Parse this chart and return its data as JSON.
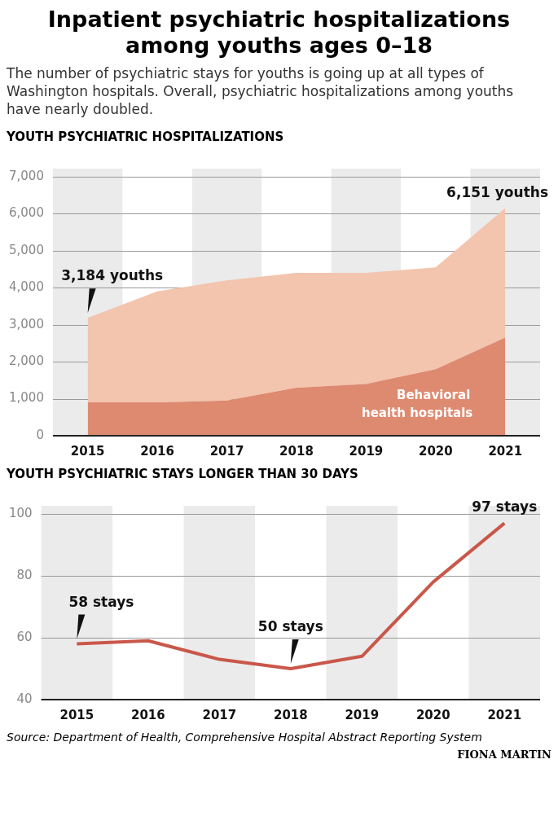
{
  "chart_data": [
    {
      "type": "area",
      "title": "Inpatient psychiatric hospitalizations among youths ages 0–18",
      "subtitle": "The number of psychiatric stays for youths is going up at all types of Washington hospitals. Overall, psychiatric hospitalizations among youths have nearly doubled.",
      "categories": [
        "2015",
        "2016",
        "2017",
        "2018",
        "2019",
        "2020",
        "2021"
      ],
      "stacked": true,
      "series": [
        {
          "name": "Behavioral health hospitals",
          "color": "#de8a70",
          "values": [
            900,
            900,
            950,
            1300,
            1400,
            1800,
            2650
          ]
        },
        {
          "color": "#f3c4ae",
          "values": [
            2284,
            3000,
            3250,
            3100,
            3000,
            2750,
            3501
          ]
        }
      ],
      "ylim": [
        0,
        7000
      ],
      "yticks": [
        {
          "value": 0,
          "label": "0"
        },
        {
          "value": 1000,
          "label": "1,000"
        },
        {
          "value": 2000,
          "label": "2,000"
        },
        {
          "value": 3000,
          "label": "3,000"
        },
        {
          "value": 4000,
          "label": "4,000"
        },
        {
          "value": 5000,
          "label": "5,000"
        },
        {
          "value": 6000,
          "label": "6,000"
        },
        {
          "value": 7000,
          "label": "7,000"
        }
      ],
      "grid": "y",
      "legend": false,
      "marker": "none",
      "bands": [
        {
          "axis": "x",
          "from": "2015",
          "to": "2015",
          "color": "#ebebeb"
        },
        {
          "axis": "x",
          "from": "2017",
          "to": "2017",
          "color": "#ebebeb"
        },
        {
          "axis": "x",
          "from": "2019",
          "to": "2019",
          "color": "#ebebeb"
        },
        {
          "axis": "x",
          "from": "2021",
          "to": "2021",
          "color": "#ebebeb"
        }
      ],
      "annotations": [
        "YOUTH PSYCHIATRIC HOSPITALIZATIONS",
        {
          "text": "3,184 youths",
          "x": "2015",
          "y": 3184
        },
        {
          "text": "6,151 youths",
          "x": "2021",
          "y": 6151
        }
      ]
    },
    {
      "type": "line",
      "categories": [
        "2015",
        "2016",
        "2017",
        "2018",
        "2019",
        "2020",
        "2021"
      ],
      "series": [
        {
          "color": "#c9574a",
          "values": [
            58,
            59,
            53,
            50,
            54,
            78,
            97
          ]
        }
      ],
      "ylim": [
        40,
        100
      ],
      "yticks": [
        40,
        60,
        80,
        100
      ],
      "grid": "y",
      "legend": false,
      "marker": "none",
      "line_style": "solid",
      "bands": [
        {
          "axis": "x",
          "from": "2015",
          "to": "2015",
          "color": "#ebebeb"
        },
        {
          "axis": "x",
          "from": "2017",
          "to": "2017",
          "color": "#ebebeb"
        },
        {
          "axis": "x",
          "from": "2019",
          "to": "2019",
          "color": "#ebebeb"
        },
        {
          "axis": "x",
          "from": "2021",
          "to": "2021",
          "color": "#ebebeb"
        }
      ],
      "annotations": [
        "YOUTH PSYCHIATRIC STAYS LONGER THAN 30 DAYS",
        {
          "text": "58 stays",
          "x": "2015",
          "y": 58
        },
        {
          "text": "50 stays",
          "x": "2018",
          "y": 50
        },
        {
          "text": "97 stays",
          "x": "2021",
          "y": 97
        },
        "Source: Department of Health, Comprehensive Hospital Abstract Reporting System",
        "FIONA MARTIN"
      ]
    }
  ]
}
